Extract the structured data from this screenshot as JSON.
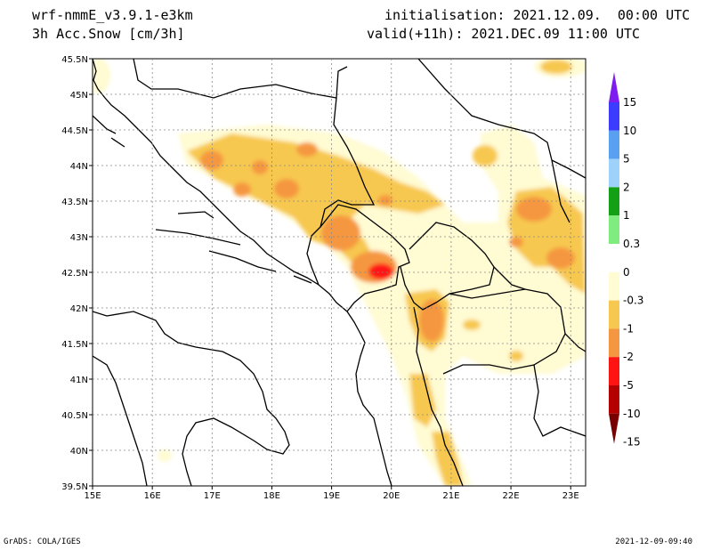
{
  "header": {
    "model": "wrf-nmmE_v3.9.1-e3km",
    "variable": "3h Acc.Snow [cm/3h]",
    "init": "initialisation: 2021.12.09.  00:00 UTC",
    "valid": "valid(+11h): 2021.DEC.09 11:00 UTC"
  },
  "footer": {
    "left": "GrADS: COLA/IGES",
    "right": "2021-12-09-09:40"
  },
  "map": {
    "lon_range": [
      15,
      23.25
    ],
    "lat_range": [
      39.5,
      45.5
    ],
    "lon_ticks": [
      "15E",
      "16E",
      "17E",
      "18E",
      "19E",
      "20E",
      "21E",
      "22E",
      "23E"
    ],
    "lat_ticks": [
      "45.5N",
      "45N",
      "44.5N",
      "44N",
      "43.5N",
      "43N",
      "42.5N",
      "42N",
      "41.5N",
      "41N",
      "40.5N",
      "40N",
      "39.5N"
    ]
  },
  "colorbar": {
    "labels": [
      "15",
      "10",
      "5",
      "2",
      "1",
      "0.3",
      "0",
      "-0.3",
      "-1",
      "-2",
      "-5",
      "-10",
      "-15"
    ],
    "colors": [
      "#7f1cf0",
      "#3c3cff",
      "#5aa0f0",
      "#9ed2fa",
      "#14a014",
      "#7eec7e",
      "#ffffff",
      "#fffbd2",
      "#f7c850",
      "#f59741",
      "#ff1414",
      "#b40000",
      "#780000"
    ]
  }
}
